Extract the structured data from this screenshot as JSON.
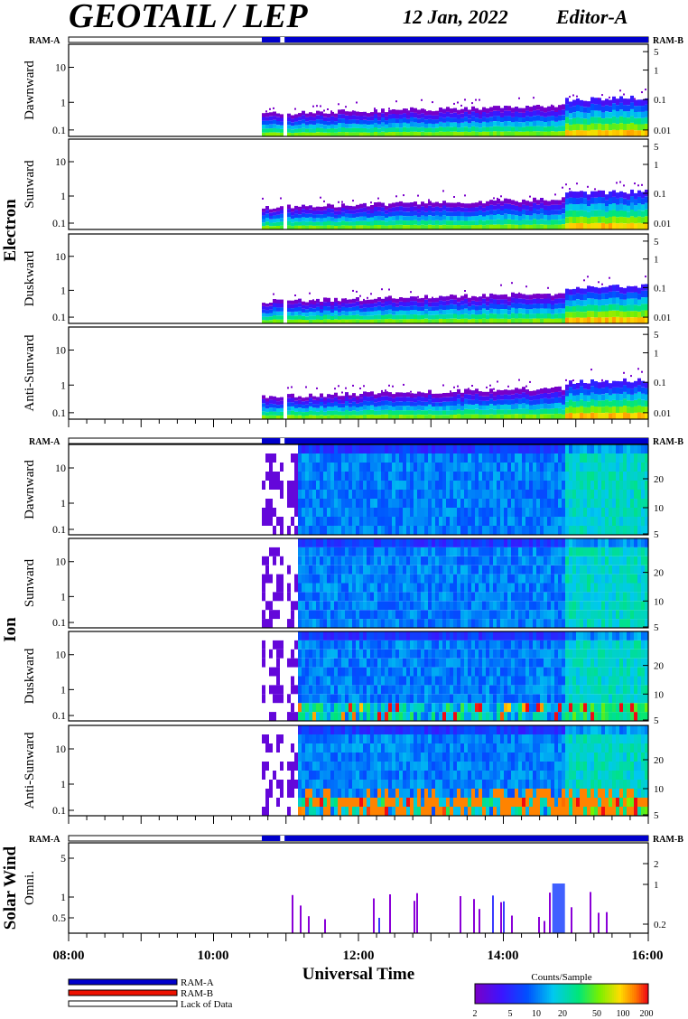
{
  "header": {
    "title": "GEOTAIL / LEP",
    "date": "12 Jan, 2022",
    "editor": "Editor-A"
  },
  "ram_labels": {
    "left": "RAM-A",
    "right": "RAM-B"
  },
  "groups": [
    {
      "label": "Electron"
    },
    {
      "label": "Ion"
    },
    {
      "label": "Solar Wind"
    }
  ],
  "panels": [
    {
      "label": "Dawnward",
      "group": "Electron"
    },
    {
      "label": "Sunward",
      "group": "Electron"
    },
    {
      "label": "Duskward",
      "group": "Electron"
    },
    {
      "label": "Anti-Sunward",
      "group": "Electron"
    },
    {
      "label": "Dawnward",
      "group": "Ion"
    },
    {
      "label": "Sunward",
      "group": "Ion"
    },
    {
      "label": "Duskward",
      "group": "Ion"
    },
    {
      "label": "Anti-Sunward",
      "group": "Ion"
    },
    {
      "label": "Omni.",
      "group": "Solar Wind"
    }
  ],
  "axes": {
    "left_ticks_electron": [
      "10",
      "1",
      "0.1"
    ],
    "right_ticks_electron": [
      "5",
      "1",
      "0.1",
      "0.01"
    ],
    "left_ticks_ion": [
      "10",
      "1",
      "0.1"
    ],
    "right_ticks_ion": [
      "20",
      "10",
      "5"
    ],
    "left_ticks_sw": [
      "5",
      "1",
      "0.5"
    ],
    "right_ticks_sw": [
      "2",
      "1",
      "0.2"
    ],
    "x_ticks": [
      "08:00",
      "10:00",
      "12:00",
      "14:00",
      "16:00"
    ],
    "xlabel": "Universal Time"
  },
  "legend": {
    "items": [
      {
        "label": "RAM-A",
        "color": "#0000cc"
      },
      {
        "label": "RAM-B",
        "color": "#ee1100"
      },
      {
        "label": "Lack of Data",
        "color": "#ffffff"
      }
    ]
  },
  "colorbar": {
    "title": "Counts/Sample",
    "ticks": [
      "2",
      "5",
      "10",
      "20",
      "50",
      "100",
      "200"
    ]
  },
  "chart_data": {
    "type": "heatmap",
    "title": "GEOTAIL / LEP",
    "xlabel": "Universal Time",
    "x_range": [
      "08:00",
      "16:00"
    ],
    "data_start": "10:40",
    "colorscale": {
      "label": "Counts/Sample",
      "min": 2,
      "max": 200,
      "scale": "log"
    },
    "series": [
      {
        "name": "Electron Dawnward",
        "ylim": [
          0.08,
          40
        ]
      },
      {
        "name": "Electron Sunward",
        "ylim": [
          0.08,
          40
        ]
      },
      {
        "name": "Electron Duskward",
        "ylim": [
          0.08,
          40
        ]
      },
      {
        "name": "Electron Anti-Sunward",
        "ylim": [
          0.08,
          40
        ]
      },
      {
        "name": "Ion Dawnward",
        "ylim": [
          0.08,
          40
        ]
      },
      {
        "name": "Ion Sunward",
        "ylim": [
          0.08,
          40
        ]
      },
      {
        "name": "Ion Duskward",
        "ylim": [
          0.08,
          40
        ]
      },
      {
        "name": "Ion Anti-Sunward",
        "ylim": [
          0.08,
          40
        ]
      },
      {
        "name": "Solar Wind Omni.",
        "ylim": [
          0.2,
          8
        ]
      }
    ]
  }
}
